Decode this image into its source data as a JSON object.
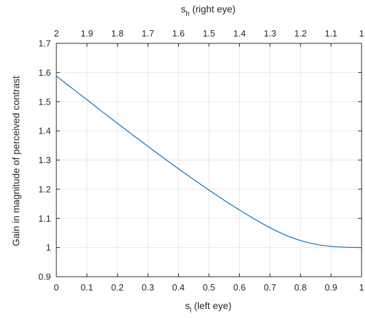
{
  "chart_data": {
    "type": "line",
    "xlabel": {
      "main": "s",
      "sub": "l",
      "rest": " (left eye)"
    },
    "x2label": {
      "main": "s",
      "sub": "h",
      "rest": " (right eye)"
    },
    "ylabel": "Gain in magnitude of perceived contrast",
    "xlim": [
      0,
      1
    ],
    "ylim": [
      0.9,
      1.7
    ],
    "x_ticks": [
      "0",
      "0.1",
      "0.2",
      "0.3",
      "0.4",
      "0.5",
      "0.6",
      "0.7",
      "0.8",
      "0.9",
      "1"
    ],
    "x2_ticks": [
      "2",
      "1.9",
      "1.8",
      "1.7",
      "1.6",
      "1.5",
      "1.4",
      "1.3",
      "1.2",
      "1.1",
      "1"
    ],
    "y_ticks": [
      "0.9",
      "1",
      "1.1",
      "1.2",
      "1.3",
      "1.4",
      "1.5",
      "1.6",
      "1.7"
    ],
    "grid": true,
    "line_color": "#0072bd",
    "series": [
      {
        "x": [
          0,
          0.05,
          0.1,
          0.15,
          0.2,
          0.25,
          0.3,
          0.35,
          0.4,
          0.45,
          0.5,
          0.55,
          0.6,
          0.65,
          0.7,
          0.75,
          0.8,
          0.85,
          0.9,
          0.95,
          1.0
        ],
        "y": [
          1.588,
          1.547,
          1.507,
          1.466,
          1.426,
          1.386,
          1.347,
          1.308,
          1.27,
          1.233,
          1.197,
          1.162,
          1.129,
          1.097,
          1.068,
          1.043,
          1.024,
          1.011,
          1.004,
          1.001,
          1.0
        ]
      }
    ]
  }
}
